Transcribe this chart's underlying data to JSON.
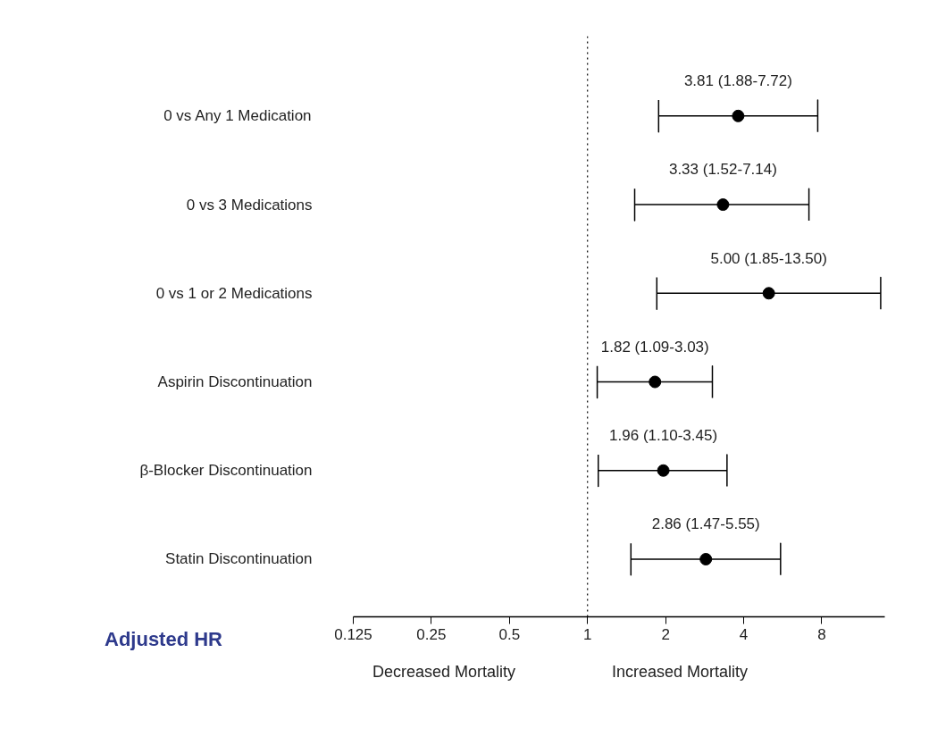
{
  "chart_data": {
    "type": "scatter",
    "orientation": "horizontal",
    "categories": [
      "0 vs Any 1 Medication",
      "0 vs 3 Medications",
      "0 vs 1 or 2 Medications",
      "Aspirin Discontinuation",
      "β-Blocker Discontinuation",
      "Statin Discontinuation"
    ],
    "values": [
      3.81,
      3.33,
      5.0,
      1.82,
      1.96,
      2.86
    ],
    "errors": [
      [
        1.88,
        7.72
      ],
      [
        1.52,
        7.14
      ],
      [
        1.85,
        13.5
      ],
      [
        1.09,
        3.03
      ],
      [
        1.1,
        3.45
      ],
      [
        1.47,
        5.55
      ]
    ],
    "value_labels": [
      "3.81 (1.88-7.72)",
      "3.33 (1.52-7.14)",
      "5.00 (1.85-13.50)",
      "1.82 (1.09-3.03)",
      "1.96 (1.10-3.45)",
      "2.86 (1.47-5.55)"
    ],
    "color": "#000000",
    "marker": "circle",
    "log": "x",
    "xlim": [
      0.125,
      14
    ],
    "xticks": [
      0.125,
      0.25,
      0.5,
      1,
      2,
      4,
      8
    ],
    "ref_lines": [
      {
        "axis": "x",
        "value": 1,
        "line_style": "dotted"
      }
    ],
    "annotations": [
      "Adjusted HR",
      "Decreased Mortality",
      "Increased Mortality"
    ]
  }
}
